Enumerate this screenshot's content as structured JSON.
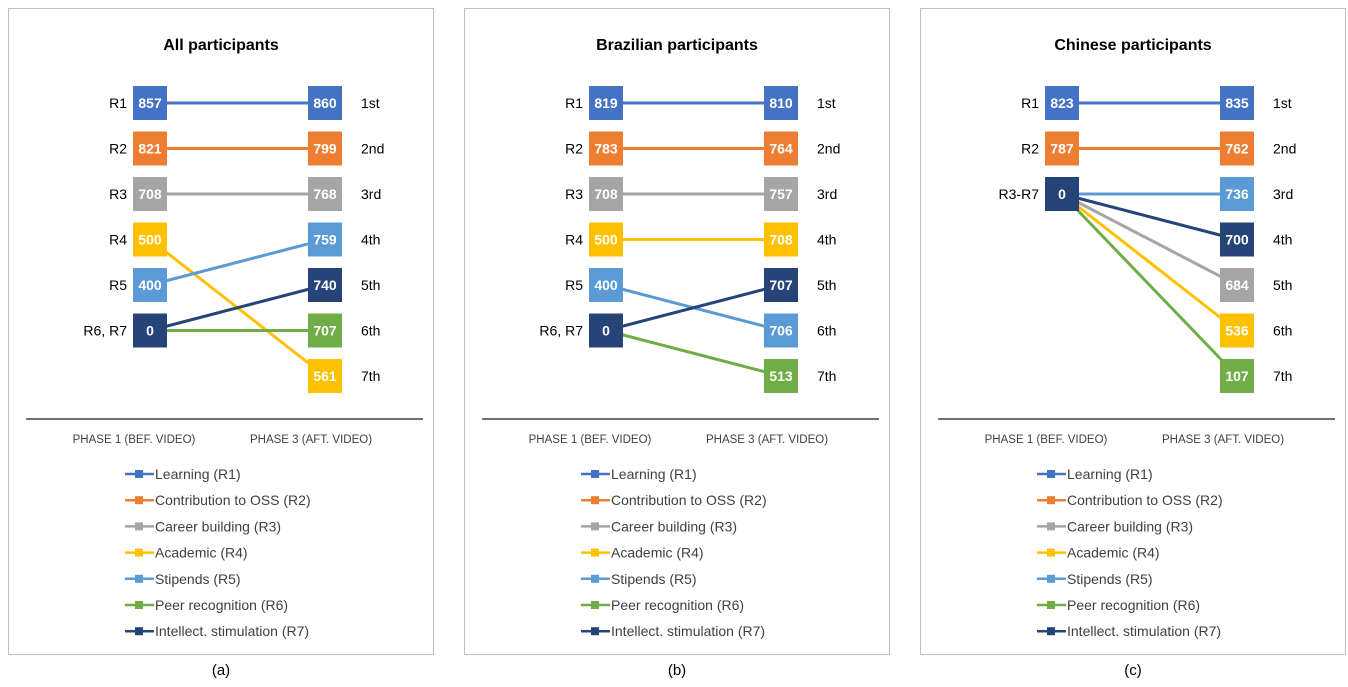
{
  "colors": {
    "R1": "#4472c4",
    "R2": "#ed7d31",
    "R3": "#a5a5a5",
    "R4": "#ffc000",
    "R5": "#5b9bd5",
    "R6": "#70ad47",
    "R7": "#264478"
  },
  "legend": [
    {
      "key": "R1",
      "label": "Learning (R1)"
    },
    {
      "key": "R2",
      "label": "Contribution to OSS (R2)"
    },
    {
      "key": "R3",
      "label": "Career building (R3)"
    },
    {
      "key": "R4",
      "label": "Academic (R4)"
    },
    {
      "key": "R5",
      "label": "Stipends (R5)"
    },
    {
      "key": "R6",
      "label": "Peer recognition (R6)"
    },
    {
      "key": "R7",
      "label": "Intellect. stimulation (R7)"
    }
  ],
  "categories": [
    "PHASE 1 (BEF. VIDEO)",
    "PHASE 3 (AFT. VIDEO)"
  ],
  "ranks": [
    "1st",
    "2nd",
    "3rd",
    "4th",
    "5th",
    "6th",
    "7th"
  ],
  "chart_data": [
    {
      "type": "line",
      "title": "All participants",
      "caption": "(a)",
      "left_nodes": [
        {
          "label": "R1",
          "value": 857,
          "key": "R1",
          "row": 1
        },
        {
          "label": "R2",
          "value": 821,
          "key": "R2",
          "row": 2
        },
        {
          "label": "R3",
          "value": 708,
          "key": "R3",
          "row": 3
        },
        {
          "label": "R4",
          "value": 500,
          "key": "R4",
          "row": 4
        },
        {
          "label": "R5",
          "value": 400,
          "key": "R5",
          "row": 5
        },
        {
          "label": "R6, R7",
          "value": 0,
          "key": "R7",
          "row": 6
        }
      ],
      "right_nodes": [
        {
          "value": 860,
          "key": "R1",
          "row": 1
        },
        {
          "value": 799,
          "key": "R2",
          "row": 2
        },
        {
          "value": 768,
          "key": "R3",
          "row": 3
        },
        {
          "value": 759,
          "key": "R5",
          "row": 4
        },
        {
          "value": 740,
          "key": "R7",
          "row": 5
        },
        {
          "value": 707,
          "key": "R6",
          "row": 6
        },
        {
          "value": 561,
          "key": "R4",
          "row": 7
        }
      ],
      "series": [
        {
          "key": "R1",
          "from_row": 1,
          "to_row": 1
        },
        {
          "key": "R2",
          "from_row": 2,
          "to_row": 2
        },
        {
          "key": "R3",
          "from_row": 3,
          "to_row": 3
        },
        {
          "key": "R4",
          "from_row": 4,
          "to_row": 7
        },
        {
          "key": "R5",
          "from_row": 5,
          "to_row": 4
        },
        {
          "key": "R6",
          "from_row": 6,
          "to_row": 6
        },
        {
          "key": "R7",
          "from_row": 6,
          "to_row": 5
        }
      ]
    },
    {
      "type": "line",
      "title": "Brazilian participants",
      "caption": "(b)",
      "left_nodes": [
        {
          "label": "R1",
          "value": 819,
          "key": "R1",
          "row": 1
        },
        {
          "label": "R2",
          "value": 783,
          "key": "R2",
          "row": 2
        },
        {
          "label": "R3",
          "value": 708,
          "key": "R3",
          "row": 3
        },
        {
          "label": "R4",
          "value": 500,
          "key": "R4",
          "row": 4
        },
        {
          "label": "R5",
          "value": 400,
          "key": "R5",
          "row": 5
        },
        {
          "label": "R6, R7",
          "value": 0,
          "key": "R7",
          "row": 6
        }
      ],
      "right_nodes": [
        {
          "value": 810,
          "key": "R1",
          "row": 1
        },
        {
          "value": 764,
          "key": "R2",
          "row": 2
        },
        {
          "value": 757,
          "key": "R3",
          "row": 3
        },
        {
          "value": 708,
          "key": "R4",
          "row": 4
        },
        {
          "value": 707,
          "key": "R7",
          "row": 5
        },
        {
          "value": 706,
          "key": "R5",
          "row": 6
        },
        {
          "value": 513,
          "key": "R6",
          "row": 7
        }
      ],
      "series": [
        {
          "key": "R1",
          "from_row": 1,
          "to_row": 1
        },
        {
          "key": "R2",
          "from_row": 2,
          "to_row": 2
        },
        {
          "key": "R3",
          "from_row": 3,
          "to_row": 3
        },
        {
          "key": "R4",
          "from_row": 4,
          "to_row": 4
        },
        {
          "key": "R5",
          "from_row": 5,
          "to_row": 6
        },
        {
          "key": "R6",
          "from_row": 6,
          "to_row": 7
        },
        {
          "key": "R7",
          "from_row": 6,
          "to_row": 5
        }
      ]
    },
    {
      "type": "line",
      "title": "Chinese participants",
      "caption": "(c)",
      "left_nodes": [
        {
          "label": "R1",
          "value": 823,
          "key": "R1",
          "row": 1
        },
        {
          "label": "R2",
          "value": 787,
          "key": "R2",
          "row": 2
        },
        {
          "label": "R3-R7",
          "value": 0,
          "key": "R7",
          "row": 3
        }
      ],
      "right_nodes": [
        {
          "value": 835,
          "key": "R1",
          "row": 1
        },
        {
          "value": 762,
          "key": "R2",
          "row": 2
        },
        {
          "value": 736,
          "key": "R5",
          "row": 3
        },
        {
          "value": 700,
          "key": "R7",
          "row": 4
        },
        {
          "value": 684,
          "key": "R3",
          "row": 5
        },
        {
          "value": 536,
          "key": "R4",
          "row": 6
        },
        {
          "value": 107,
          "key": "R6",
          "row": 7
        }
      ],
      "series": [
        {
          "key": "R1",
          "from_row": 1,
          "to_row": 1
        },
        {
          "key": "R2",
          "from_row": 2,
          "to_row": 2
        },
        {
          "key": "R5",
          "from_row": 3,
          "to_row": 3
        },
        {
          "key": "R7",
          "from_row": 3,
          "to_row": 4
        },
        {
          "key": "R3",
          "from_row": 3,
          "to_row": 5
        },
        {
          "key": "R4",
          "from_row": 3,
          "to_row": 6
        },
        {
          "key": "R6",
          "from_row": 3,
          "to_row": 7
        }
      ]
    }
  ]
}
